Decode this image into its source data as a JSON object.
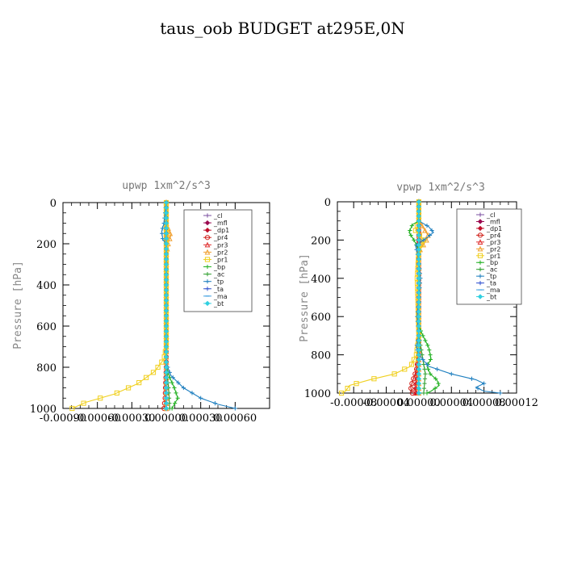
{
  "title": "taus_oob  BUDGET at295E,0N",
  "chart_data": [
    {
      "type": "line",
      "title": "upwp   1xm^2/s^3",
      "xlabel": "",
      "ylabel": "Pressure [hPa]",
      "xlim": [
        -0.0009,
        0.0009
      ],
      "ylim": [
        1000,
        0
      ],
      "xticks": [
        -0.0009,
        -0.0006,
        -0.0003,
        0.0,
        0.0003,
        0.0006
      ],
      "xtick_labels": [
        "-0.00090",
        "-0.00060",
        "-0.00030",
        "0.00000",
        "0.00030",
        "0.00060"
      ],
      "yticks": [
        0,
        200,
        400,
        600,
        800,
        1000
      ],
      "ytick_labels": [
        "0",
        "200",
        "400",
        "600",
        "800",
        "1000"
      ],
      "legend_position": "top-right",
      "series": [
        {
          "name": "_cl",
          "color": "#7b4fa0",
          "marker": "cross",
          "points": [
            [
              0,
              0
            ],
            [
              0,
              100
            ],
            [
              0,
              200
            ],
            [
              0,
              400
            ],
            [
              0,
              600
            ],
            [
              0,
              800
            ],
            [
              0,
              1000
            ]
          ]
        },
        {
          "name": "_mfl",
          "color": "#9b0a50",
          "marker": "diamond",
          "points": [
            [
              0,
              0
            ],
            [
              0,
              100
            ],
            [
              0,
              200
            ],
            [
              0,
              400
            ],
            [
              0,
              600
            ],
            [
              0,
              800
            ],
            [
              0,
              900
            ],
            [
              0,
              1000
            ]
          ]
        },
        {
          "name": "_dp1",
          "color": "#c0102a",
          "marker": "diamond",
          "points": [
            [
              0,
              0
            ],
            [
              0,
              200
            ],
            [
              0,
              600
            ],
            [
              0,
              800
            ],
            [
              0,
              1000
            ]
          ]
        },
        {
          "name": "_pr4",
          "color": "#d0201a",
          "marker": "circle",
          "points": [
            [
              0,
              0
            ],
            [
              0,
              200
            ],
            [
              0,
              600
            ],
            [
              0,
              800
            ],
            [
              -1e-05,
              950
            ],
            [
              -2e-05,
              1000
            ]
          ]
        },
        {
          "name": "_pr3",
          "color": "#e03030",
          "marker": "triangle",
          "points": [
            [
              0,
              0
            ],
            [
              0,
              200
            ],
            [
              0,
              600
            ],
            [
              0,
              800
            ],
            [
              0,
              1000
            ]
          ]
        },
        {
          "name": "_pr2",
          "color": "#f0a030",
          "marker": "triangle",
          "points": [
            [
              0,
              0
            ],
            [
              0,
              100
            ],
            [
              2e-05,
              130
            ],
            [
              4e-05,
              160
            ],
            [
              2e-05,
              190
            ],
            [
              0,
              250
            ],
            [
              0,
              1000
            ]
          ]
        },
        {
          "name": "_pr1",
          "color": "#f0d020",
          "marker": "square",
          "points": [
            [
              0,
              0
            ],
            [
              0,
              700
            ],
            [
              -2e-05,
              760
            ],
            [
              -0.0001,
              820
            ],
            [
              -0.00025,
              880
            ],
            [
              -0.00045,
              930
            ],
            [
              -0.0007,
              970
            ],
            [
              -0.00082,
              1000
            ]
          ]
        },
        {
          "name": "_bp",
          "color": "#20b020",
          "marker": "cross",
          "points": [
            [
              0,
              0
            ],
            [
              0,
              800
            ],
            [
              3e-05,
              850
            ],
            [
              7e-05,
              900
            ],
            [
              0.0001,
              950
            ],
            [
              5e-05,
              1000
            ]
          ]
        },
        {
          "name": "_ac",
          "color": "#30a030",
          "marker": "cross",
          "points": [
            [
              0,
              0
            ],
            [
              0,
              800
            ],
            [
              2e-05,
              900
            ],
            [
              3e-05,
              1000
            ]
          ]
        },
        {
          "name": "_tp",
          "color": "#2080c0",
          "marker": "cross",
          "points": [
            [
              0,
              0
            ],
            [
              -2e-05,
              100
            ],
            [
              -4e-05,
              140
            ],
            [
              -3e-05,
              180
            ],
            [
              0,
              200
            ],
            [
              0,
              780
            ],
            [
              4e-05,
              840
            ],
            [
              0.00015,
              900
            ],
            [
              0.0003,
              950
            ],
            [
              0.00045,
              980
            ],
            [
              0.0006,
              1000
            ]
          ]
        },
        {
          "name": "_ta",
          "color": "#3050d0",
          "marker": "cross",
          "points": [
            [
              0,
              0
            ],
            [
              0,
              1000
            ]
          ]
        },
        {
          "name": "_ma",
          "color": "#40a0e0",
          "marker": "dash",
          "points": [
            [
              0,
              0
            ],
            [
              0,
              1000
            ]
          ]
        },
        {
          "name": "_bt",
          "color": "#30d0e0",
          "marker": "diamond",
          "points": [
            [
              0,
              0
            ],
            [
              0,
              1000
            ]
          ]
        }
      ]
    },
    {
      "type": "line",
      "title": "vpwp   1xm^2/s^3",
      "xlabel": "",
      "ylabel": "Pressure [hPa]",
      "xlim": [
        -0.0001,
        0.00012
      ],
      "ylim": [
        1000,
        0
      ],
      "xticks": [
        -8e-05,
        -4e-05,
        0.0,
        4e-05,
        8e-05,
        0.00012
      ],
      "xtick_labels": [
        "-0.00008",
        "-0.00004",
        "0.00000",
        "0.00004",
        "0.00008",
        "0.00012"
      ],
      "yticks": [
        0,
        200,
        400,
        600,
        800,
        1000
      ],
      "ytick_labels": [
        "0",
        "200",
        "400",
        "600",
        "800",
        "1000"
      ],
      "legend_position": "top-right",
      "series": [
        {
          "name": "_cl",
          "color": "#7b4fa0",
          "marker": "cross",
          "points": [
            [
              0,
              0
            ],
            [
              0,
              200
            ],
            [
              0,
              600
            ],
            [
              0,
              1000
            ]
          ]
        },
        {
          "name": "_mfl",
          "color": "#9b0a50",
          "marker": "diamond",
          "points": [
            [
              0,
              0
            ],
            [
              0,
              200
            ],
            [
              0,
              600
            ],
            [
              0,
              850
            ],
            [
              -2e-06,
              920
            ],
            [
              -4e-06,
              980
            ],
            [
              -3e-06,
              1000
            ]
          ]
        },
        {
          "name": "_dp1",
          "color": "#c0102a",
          "marker": "diamond",
          "points": [
            [
              0,
              0
            ],
            [
              0,
              200
            ],
            [
              0,
              800
            ],
            [
              -2e-06,
              900
            ],
            [
              -4e-06,
              1000
            ]
          ]
        },
        {
          "name": "_pr4",
          "color": "#d0201a",
          "marker": "circle",
          "points": [
            [
              0,
              0
            ],
            [
              0,
              800
            ],
            [
              -3e-06,
              880
            ],
            [
              -7e-06,
              930
            ],
            [
              -1e-05,
              970
            ],
            [
              -8e-06,
              1000
            ]
          ]
        },
        {
          "name": "_pr3",
          "color": "#e03030",
          "marker": "triangle",
          "points": [
            [
              0,
              0
            ],
            [
              0,
              800
            ],
            [
              -2e-06,
              900
            ],
            [
              -4e-06,
              1000
            ]
          ]
        },
        {
          "name": "_pr2",
          "color": "#f0a030",
          "marker": "triangle",
          "points": [
            [
              0,
              0
            ],
            [
              0,
              100
            ],
            [
              6e-06,
              140
            ],
            [
              1.2e-05,
              180
            ],
            [
              8e-06,
              210
            ],
            [
              0,
              260
            ],
            [
              0,
              1000
            ]
          ]
        },
        {
          "name": "_pr1",
          "color": "#f0d020",
          "marker": "square",
          "points": [
            [
              0,
              0
            ],
            [
              0,
              100
            ],
            [
              -4e-06,
              150
            ],
            [
              6e-06,
              200
            ],
            [
              0,
              250
            ],
            [
              -2e-06,
              400
            ],
            [
              0,
              700
            ],
            [
              -3e-06,
              800
            ],
            [
              -1e-05,
              860
            ],
            [
              -3e-05,
              900
            ],
            [
              -6e-05,
              930
            ],
            [
              -8.5e-05,
              960
            ],
            [
              -9e-05,
              990
            ],
            [
              -9.5e-05,
              1000
            ]
          ]
        },
        {
          "name": "_bp",
          "color": "#20b020",
          "marker": "cross",
          "points": [
            [
              0,
              0
            ],
            [
              0,
              100
            ],
            [
              -8e-06,
              120
            ],
            [
              -1.2e-05,
              160
            ],
            [
              -6e-06,
              200
            ],
            [
              0,
              250
            ],
            [
              0,
              650
            ],
            [
              5e-06,
              700
            ],
            [
              1.2e-05,
              760
            ],
            [
              1.5e-05,
              820
            ],
            [
              1e-05,
              860
            ],
            [
              1.4e-05,
              900
            ],
            [
              2.2e-05,
              930
            ],
            [
              2.5e-05,
              960
            ],
            [
              1.5e-05,
              990
            ],
            [
              1e-05,
              1000
            ]
          ]
        },
        {
          "name": "_ac",
          "color": "#30a030",
          "marker": "cross",
          "points": [
            [
              0,
              0
            ],
            [
              0,
              700
            ],
            [
              4e-06,
              800
            ],
            [
              8e-06,
              900
            ],
            [
              6e-06,
              1000
            ]
          ]
        },
        {
          "name": "_tp",
          "color": "#2080c0",
          "marker": "cross",
          "points": [
            [
              0,
              0
            ],
            [
              0,
              100
            ],
            [
              1.2e-05,
              130
            ],
            [
              1.8e-05,
              160
            ],
            [
              6e-06,
              200
            ],
            [
              -4e-06,
              230
            ],
            [
              0,
              300
            ],
            [
              2e-06,
              400
            ],
            [
              0,
              500
            ],
            [
              -2e-06,
              600
            ],
            [
              0,
              700
            ],
            [
              -3e-06,
              760
            ],
            [
              0,
              800
            ],
            [
              1.2e-05,
              860
            ],
            [
              4e-05,
              900
            ],
            [
              7e-05,
              930
            ],
            [
              8e-05,
              950
            ],
            [
              7e-05,
              970
            ],
            [
              8e-05,
              990
            ],
            [
              0.0001,
              1000
            ]
          ]
        },
        {
          "name": "_ta",
          "color": "#3050d0",
          "marker": "cross",
          "points": [
            [
              0,
              0
            ],
            [
              0,
              1000
            ]
          ]
        },
        {
          "name": "_ma",
          "color": "#40a0e0",
          "marker": "dash",
          "points": [
            [
              0,
              0
            ],
            [
              0,
              1000
            ]
          ]
        },
        {
          "name": "_bt",
          "color": "#30d0e0",
          "marker": "diamond",
          "points": [
            [
              0,
              0
            ],
            [
              0,
              1000
            ]
          ]
        }
      ]
    }
  ]
}
